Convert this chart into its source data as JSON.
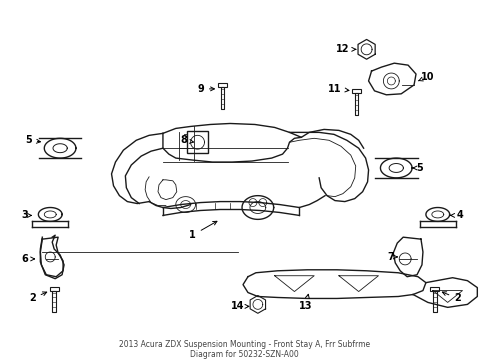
{
  "bg_color": "#ffffff",
  "line_color": "#1a1a1a",
  "figsize": [
    4.89,
    3.6
  ],
  "dpi": 100,
  "title": "2013 Acura ZDX Suspension Mounting - Front Stay A, Frr Subfrme\nDiagram for 50232-SZN-A00"
}
